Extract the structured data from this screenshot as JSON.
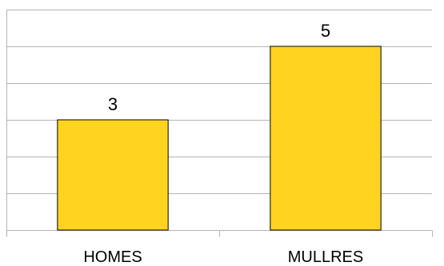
{
  "chart_data": {
    "type": "bar",
    "categories": [
      "HOMES",
      "MULLRES"
    ],
    "values": [
      3,
      5
    ],
    "data_labels": [
      "3",
      "5"
    ],
    "ylim": [
      0,
      6
    ],
    "y_gridline_step": 1,
    "grid": true,
    "legend": "none",
    "colors": {
      "bar_fill": "#FFD320",
      "bar_stroke": "#000000",
      "grid": "#B3B3B3",
      "axis": "#B3B3B3"
    }
  }
}
